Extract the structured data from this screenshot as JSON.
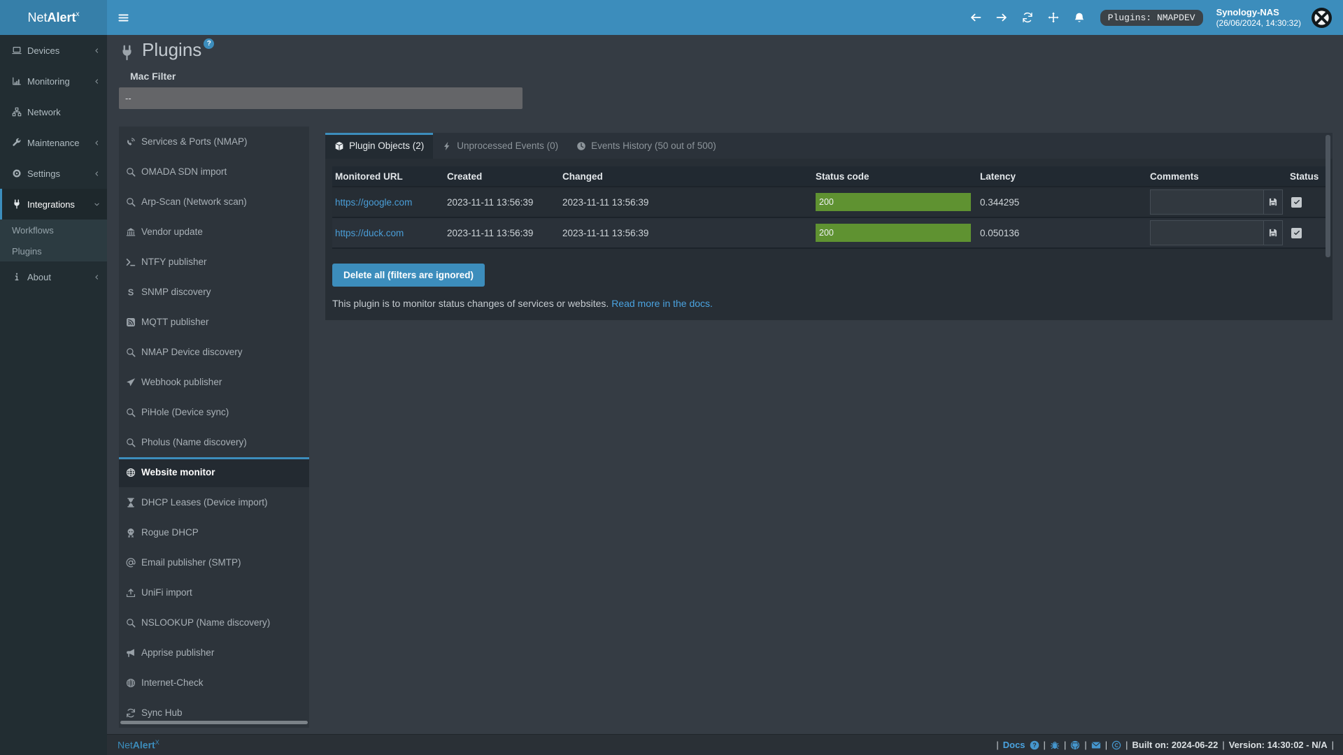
{
  "topbar": {
    "brand_prefix": "Net",
    "brand_bold": "Alert",
    "brand_sup": "x",
    "nav_badge": "Plugins: NMAPDEV",
    "device_name": "Synology-NAS",
    "device_time": "(26/06/2024, 14:30:32)"
  },
  "sidebar": {
    "items": [
      {
        "icon": "laptop-icon",
        "label": "Devices",
        "chevron": "left"
      },
      {
        "icon": "bar-chart-icon",
        "label": "Monitoring",
        "chevron": "left"
      },
      {
        "icon": "network-icon",
        "label": "Network",
        "chevron": ""
      },
      {
        "icon": "wrench-icon",
        "label": "Maintenance",
        "chevron": "left"
      },
      {
        "icon": "gear-icon",
        "label": "Settings",
        "chevron": "left"
      },
      {
        "icon": "plug-icon",
        "label": "Integrations",
        "chevron": "down",
        "active": true
      },
      {
        "label": "Workflows",
        "sub": true
      },
      {
        "label": "Plugins",
        "sub": true
      },
      {
        "icon": "info-icon",
        "label": "About",
        "chevron": "left"
      }
    ]
  },
  "page": {
    "title": "Plugins",
    "help_badge": "?",
    "mac_filter_label": "Mac Filter",
    "mac_filter_value": "--"
  },
  "plugin_nav": {
    "items": [
      {
        "icon": "phone-signal-icon",
        "label": "Services & Ports (NMAP)"
      },
      {
        "icon": "search-icon",
        "label": "OMADA SDN import"
      },
      {
        "icon": "search-icon",
        "label": "Arp-Scan (Network scan)"
      },
      {
        "icon": "bank-icon",
        "label": "Vendor update"
      },
      {
        "icon": "terminal-icon",
        "label": "NTFY publisher"
      },
      {
        "icon": "letter-s-icon",
        "label": "SNMP discovery"
      },
      {
        "icon": "rss-icon",
        "label": "MQTT publisher"
      },
      {
        "icon": "search-icon",
        "label": "NMAP Device discovery"
      },
      {
        "icon": "paper-plane-icon",
        "label": "Webhook publisher"
      },
      {
        "icon": "search-icon",
        "label": "PiHole (Device sync)"
      },
      {
        "icon": "search-icon",
        "label": "Pholus (Name discovery)"
      },
      {
        "icon": "globe-icon",
        "label": "Website monitor",
        "selected": true
      },
      {
        "icon": "hourglass-icon",
        "label": "DHCP Leases (Device import)"
      },
      {
        "icon": "skull-icon",
        "label": "Rogue DHCP"
      },
      {
        "icon": "at-icon",
        "label": "Email publisher (SMTP)"
      },
      {
        "icon": "upload-icon",
        "label": "UniFi import"
      },
      {
        "icon": "search-icon",
        "label": "NSLOOKUP (Name discovery)"
      },
      {
        "icon": "megaphone-icon",
        "label": "Apprise publisher"
      },
      {
        "icon": "globe-icon",
        "label": "Internet-Check"
      },
      {
        "icon": "sync-icon",
        "label": "Sync Hub"
      }
    ]
  },
  "tabs": [
    {
      "icon": "cube-icon",
      "label": "Plugin Objects (2)",
      "active": true
    },
    {
      "icon": "bolt-icon",
      "label": "Unprocessed Events (0)"
    },
    {
      "icon": "clock-icon",
      "label": "Events History (50 out of 500)"
    }
  ],
  "table": {
    "columns": [
      "Monitored URL",
      "Created",
      "Changed",
      "Status code",
      "Latency",
      "Comments",
      "Status"
    ],
    "rows": [
      {
        "url": "https://google.com",
        "created": "2023-11-11 13:56:39",
        "changed": "2023-11-11 13:56:39",
        "status_code": "200",
        "latency": "0.344295",
        "comment": "",
        "checked": true
      },
      {
        "url": "https://duck.com",
        "created": "2023-11-11 13:56:39",
        "changed": "2023-11-11 13:56:39",
        "status_code": "200",
        "latency": "0.050136",
        "comment": "",
        "checked": true
      }
    ]
  },
  "actions": {
    "delete_all": "Delete all (filters are ignored)"
  },
  "description": {
    "text": "This plugin is to monitor status changes of services or websites.",
    "link_text": "Read more in the docs."
  },
  "footer": {
    "brand_prefix": "Net",
    "brand_bold": "Alert",
    "brand_sup": "X",
    "separator": "|",
    "docs_label": "Docs",
    "built": "Built on: 2024-06-22",
    "version": "Version: 14:30:02 - N/A"
  },
  "colors": {
    "accent": "#3c8dbc",
    "status_ok_green": "#5f9231",
    "header_logo_blue": "#367fa9"
  }
}
